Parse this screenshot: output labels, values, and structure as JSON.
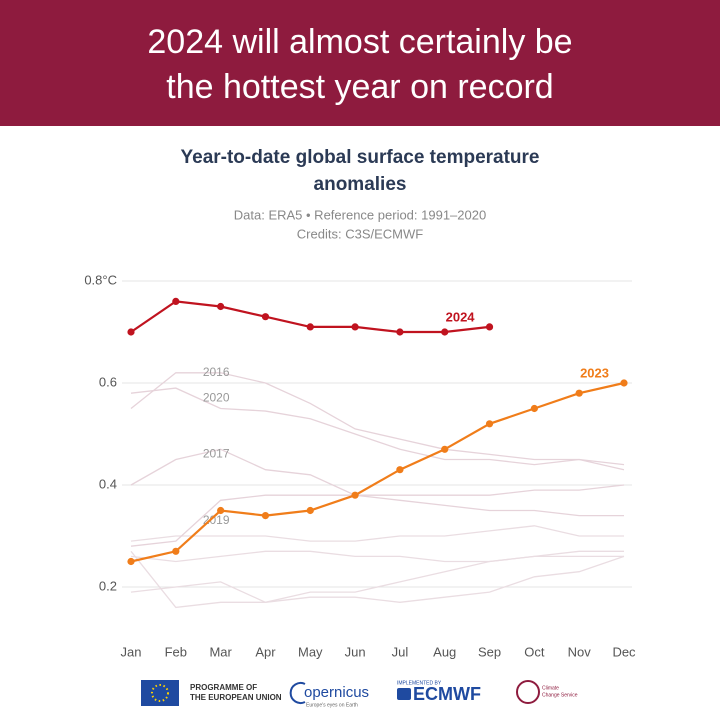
{
  "header": {
    "title": [
      "2024 will almost certainly be",
      "the hottest year on record"
    ]
  },
  "chart_data": {
    "type": "line",
    "title": [
      "Year-to-date global surface temperature",
      "anomalies"
    ],
    "subtitle": [
      "Data: ERA5 • Reference period: 1991–2020",
      "Credits: C3S/ECMWF"
    ],
    "categories": [
      "Jan",
      "Feb",
      "Mar",
      "Apr",
      "May",
      "Jun",
      "Jul",
      "Aug",
      "Sep",
      "Oct",
      "Nov",
      "Dec"
    ],
    "ylim": [
      0.14,
      0.8
    ],
    "yticks": [
      {
        "value": 0.8,
        "label": "0.8°C"
      },
      0.6,
      0.4,
      0.2
    ],
    "grid": true,
    "series": [
      {
        "color": "#eadde2",
        "values": [
          0.29,
          0.3,
          0.3,
          0.3,
          0.29,
          0.29,
          0.3,
          0.3,
          0.31,
          0.32,
          0.3,
          0.3
        ]
      },
      {
        "color": "#eadde2",
        "values": [
          0.26,
          0.25,
          0.26,
          0.27,
          0.27,
          0.26,
          0.26,
          0.25,
          0.25,
          0.26,
          0.27,
          0.27
        ]
      },
      {
        "color": "#eadde2",
        "values": [
          0.27,
          0.16,
          0.17,
          0.17,
          0.18,
          0.18,
          0.17,
          0.18,
          0.19,
          0.22,
          0.23,
          0.26
        ]
      },
      {
        "color": "#eadde2",
        "values": [
          0.19,
          0.2,
          0.21,
          0.17,
          0.19,
          0.19,
          0.21,
          0.23,
          0.25,
          0.26,
          0.26,
          0.26
        ]
      },
      {
        "name": "2016",
        "color": "#e6d3da",
        "values": [
          0.55,
          0.62,
          0.62,
          0.6,
          0.56,
          0.51,
          0.49,
          0.47,
          0.46,
          0.45,
          0.45,
          0.44
        ]
      },
      {
        "name": "2020",
        "color": "#e6d3da",
        "values": [
          0.58,
          0.59,
          0.55,
          0.545,
          0.53,
          0.5,
          0.47,
          0.45,
          0.45,
          0.44,
          0.45,
          0.43
        ]
      },
      {
        "name": "2017",
        "color": "#e6d3da",
        "values": [
          0.4,
          0.45,
          0.47,
          0.43,
          0.42,
          0.38,
          0.37,
          0.36,
          0.35,
          0.35,
          0.34,
          0.34
        ]
      },
      {
        "name": "2019",
        "color": "#e6d3da",
        "values": [
          0.28,
          0.29,
          0.37,
          0.38,
          0.38,
          0.38,
          0.38,
          0.38,
          0.38,
          0.39,
          0.39,
          0.4
        ]
      },
      {
        "name": "2023",
        "color": "#f07d1a",
        "markers": true,
        "values": [
          0.25,
          0.27,
          0.35,
          0.34,
          0.35,
          0.38,
          0.43,
          0.47,
          0.52,
          0.55,
          0.58,
          0.6
        ]
      },
      {
        "name": "2024",
        "color": "#c0131f",
        "markers": true,
        "values": [
          0.7,
          0.76,
          0.75,
          0.73,
          0.71,
          0.71,
          0.7,
          0.7,
          0.71,
          null,
          null,
          null
        ]
      }
    ]
  },
  "footer": {
    "eu": [
      "PROGRAMME OF",
      "THE EUROPEAN UNION"
    ],
    "copernicus": "opernicus",
    "copernicus_sub": "Europe's eyes on Earth",
    "implemented": "IMPLEMENTED BY",
    "ecmwf": "ECMWF",
    "c3s": [
      "Climate",
      "Change Service"
    ]
  }
}
